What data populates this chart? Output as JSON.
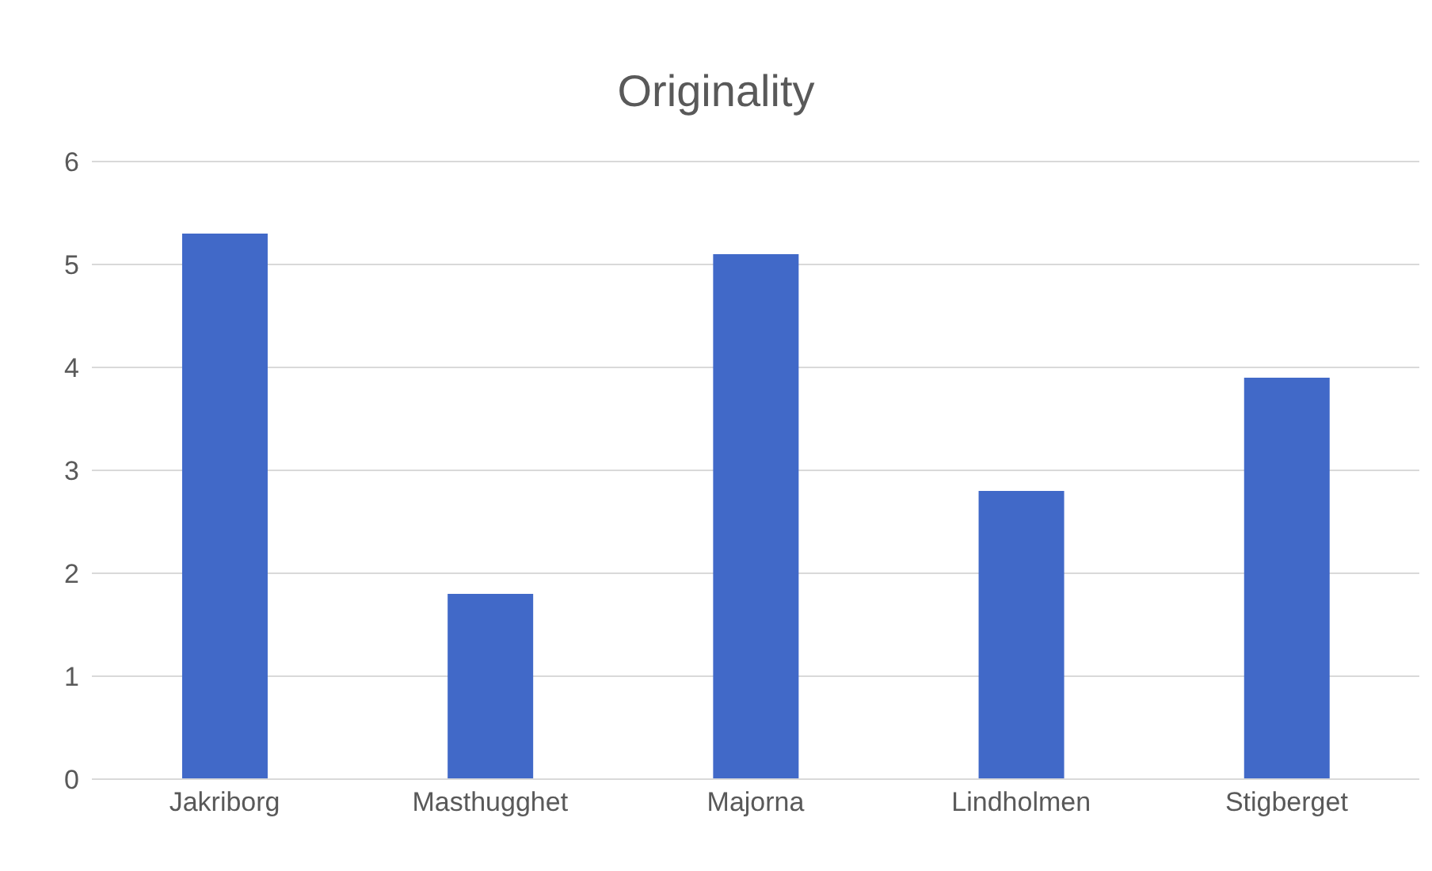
{
  "chart_data": {
    "type": "bar",
    "title": "Originality",
    "categories": [
      "Jakriborg",
      "Masthugghet",
      "Majorna",
      "Lindholmen",
      "Stigberget"
    ],
    "values": [
      5.3,
      1.8,
      5.1,
      2.8,
      3.9
    ],
    "color": "#4169c8",
    "ylim": [
      0,
      6
    ],
    "yticks": [
      0,
      1,
      2,
      3,
      4,
      5,
      6
    ],
    "grid": "y"
  }
}
